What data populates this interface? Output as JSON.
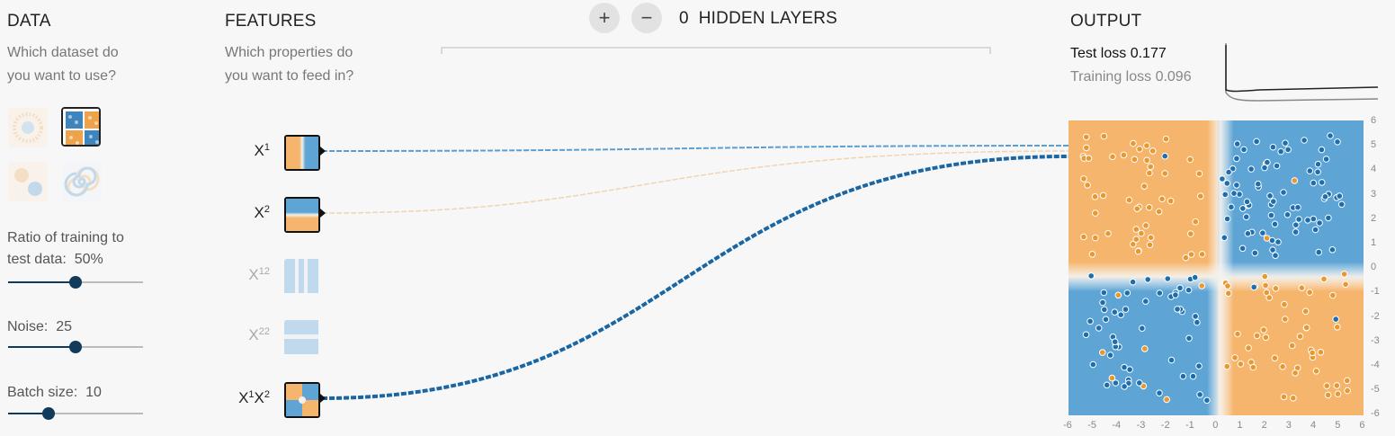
{
  "data_section": {
    "title": "DATA",
    "question_line1": "Which dataset do",
    "question_line2": "you want to use?",
    "datasets": [
      {
        "name": "circle",
        "selected": false
      },
      {
        "name": "xor",
        "selected": true
      },
      {
        "name": "gaussian",
        "selected": false
      },
      {
        "name": "spiral",
        "selected": false
      }
    ],
    "ratio_label_line1": "Ratio of training to",
    "ratio_label_line2": "test data:",
    "ratio_value": "50%",
    "ratio_fraction": 0.5,
    "noise_label": "Noise:",
    "noise_value": "25",
    "noise_fraction": 0.5,
    "batch_label": "Batch size:",
    "batch_value": "10",
    "batch_fraction": 0.3
  },
  "features_section": {
    "title": "FEATURES",
    "question_line1": "Which properties do",
    "question_line2": "you want to feed in?",
    "features": [
      {
        "base": "X",
        "sup": "1",
        "base2": "",
        "sup2": "",
        "active": true
      },
      {
        "base": "X",
        "sup": "2",
        "base2": "",
        "sup2": "",
        "active": true
      },
      {
        "base": "X",
        "sup": "1",
        "base2": "",
        "sup2": "2",
        "active": false
      },
      {
        "base": "X",
        "sup": "2",
        "base2": "",
        "sup2": "2",
        "active": false
      },
      {
        "base": "X",
        "sup": "1",
        "base2": "X",
        "sup2": "2",
        "active": true
      }
    ]
  },
  "layers": {
    "add_label": "+",
    "remove_label": "−",
    "count": "0",
    "label": "HIDDEN LAYERS"
  },
  "output_section": {
    "title": "OUTPUT",
    "test_loss_label": "Test loss",
    "test_loss_value": "0.177",
    "training_loss_label": "Training loss",
    "training_loss_value": "0.096",
    "y_ticks": [
      "6",
      "5",
      "4",
      "3",
      "2",
      "1",
      "0",
      "-1",
      "-2",
      "-3",
      "-4",
      "-5",
      "-6"
    ],
    "x_ticks": [
      "-6",
      "-5",
      "-4",
      "-3",
      "-2",
      "-1",
      "0",
      "1",
      "2",
      "3",
      "4",
      "5",
      "6"
    ]
  },
  "colors": {
    "orange": "#f5b56d",
    "blue": "#5ea4d4",
    "point_orange": "#e8982f",
    "point_blue": "#1b6fb0",
    "dark_line": "#1966a3",
    "light_line": "#5b9fd0",
    "faint_line": "#f0d4b0"
  }
}
